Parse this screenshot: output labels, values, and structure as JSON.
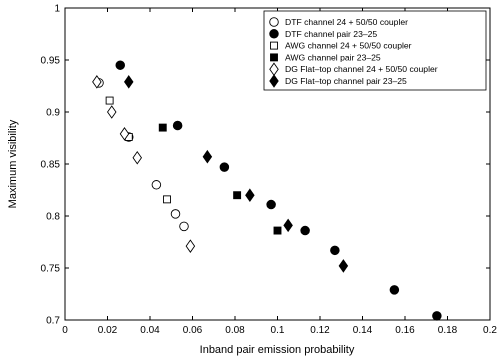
{
  "chart_data": {
    "type": "scatter",
    "title": "",
    "xlabel": "Inband pair emission probability",
    "ylabel": "Maximum visibility",
    "xlim": [
      0,
      0.2
    ],
    "ylim": [
      0.7,
      1.0
    ],
    "xticks": [
      0,
      0.02,
      0.04,
      0.06,
      0.08,
      0.1,
      0.12,
      0.14,
      0.16,
      0.18,
      0.2
    ],
    "xtick_labels": [
      "0",
      "0.02",
      "0.04",
      "0.06",
      "0.08",
      "0.1",
      "0.12",
      "0.14",
      "0.16",
      "0.18",
      "0.2"
    ],
    "yticks": [
      0.7,
      0.75,
      0.8,
      0.85,
      0.9,
      0.95,
      1.0
    ],
    "ytick_labels": [
      "0.7",
      "0.75",
      "0.8",
      "0.85",
      "0.9",
      "0.95",
      "1"
    ],
    "grid": false,
    "legend_position": "top-right",
    "series": [
      {
        "name": "DTF channel 24 + 50/50 coupler",
        "marker": "circle-open",
        "points": [
          [
            0.016,
            0.928
          ],
          [
            0.03,
            0.876
          ],
          [
            0.043,
            0.83
          ],
          [
            0.052,
            0.802
          ],
          [
            0.056,
            0.79
          ]
        ]
      },
      {
        "name": "DTF channel pair 23–25",
        "marker": "circle-filled",
        "points": [
          [
            0.026,
            0.945
          ],
          [
            0.053,
            0.887
          ],
          [
            0.075,
            0.847
          ],
          [
            0.097,
            0.811
          ],
          [
            0.113,
            0.786
          ],
          [
            0.127,
            0.767
          ],
          [
            0.155,
            0.729
          ],
          [
            0.175,
            0.704
          ]
        ]
      },
      {
        "name": "AWG channel 24 + 50/50 coupler",
        "marker": "square-open",
        "points": [
          [
            0.021,
            0.911
          ],
          [
            0.03,
            0.876
          ],
          [
            0.048,
            0.816
          ]
        ]
      },
      {
        "name": "AWG channel pair 23–25",
        "marker": "square-filled",
        "points": [
          [
            0.046,
            0.885
          ],
          [
            0.081,
            0.82
          ],
          [
            0.1,
            0.786
          ]
        ]
      },
      {
        "name": "DG Flat–top channel 24 + 50/50 coupler",
        "marker": "diamond-open",
        "points": [
          [
            0.015,
            0.929
          ],
          [
            0.022,
            0.9
          ],
          [
            0.028,
            0.879
          ],
          [
            0.034,
            0.856
          ],
          [
            0.059,
            0.771
          ]
        ]
      },
      {
        "name": "DG Flat–top channel pair 23–25",
        "marker": "diamond-filled",
        "points": [
          [
            0.03,
            0.929
          ],
          [
            0.067,
            0.857
          ],
          [
            0.087,
            0.82
          ],
          [
            0.105,
            0.791
          ],
          [
            0.131,
            0.752
          ]
        ]
      }
    ]
  }
}
